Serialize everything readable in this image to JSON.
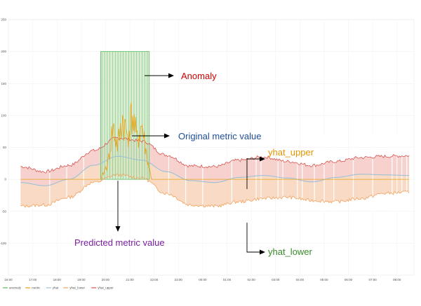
{
  "chart_data": {
    "type": "line",
    "title": "",
    "xlabel": "",
    "ylabel": "",
    "ylim": [
      -150,
      250
    ],
    "y_ticks": [
      "250",
      "200",
      "150",
      "100",
      "50",
      "0",
      "-50",
      "-100"
    ],
    "x_ticks": [
      "16:00",
      "17:00",
      "18:00",
      "19:00",
      "20:00",
      "21:00",
      "22:00",
      "23:00",
      "00:00",
      "01:00",
      "02:00",
      "03:00",
      "04:00",
      "05:00",
      "06:00",
      "07:00",
      "08:00"
    ],
    "grid": true,
    "legend_position": "bottom-left",
    "legend": [
      "anomaly",
      "metric",
      "yhat",
      "yhat_lower",
      "yhat_upper"
    ],
    "series": [
      {
        "name": "yhat_upper",
        "color": "#d9534f",
        "x": [
          16.5,
          17.5,
          18.5,
          19.5,
          20.5,
          21.5,
          22.5,
          23.5,
          24.5,
          25.5,
          26.5,
          27.5,
          28.5,
          29.5,
          30.5,
          31.5,
          32.5
        ],
        "values": [
          20,
          12,
          22,
          45,
          65,
          60,
          38,
          21,
          20,
          30,
          35,
          28,
          22,
          28,
          34,
          36,
          37
        ]
      },
      {
        "name": "yhat",
        "color": "#9cc1d6",
        "x": [
          16.5,
          17.5,
          18.5,
          19.5,
          20.5,
          21.5,
          22.5,
          23.5,
          24.5,
          25.5,
          26.5,
          27.5,
          28.5,
          29.5,
          30.5,
          31.5,
          32.5
        ],
        "values": [
          -5,
          -10,
          0,
          22,
          36,
          30,
          12,
          -2,
          -5,
          3,
          6,
          2,
          -4,
          3,
          8,
          7,
          6
        ]
      },
      {
        "name": "yhat_lower",
        "color": "#f0a35e",
        "x": [
          16.5,
          17.5,
          18.5,
          19.5,
          20.5,
          21.5,
          22.5,
          23.5,
          24.5,
          25.5,
          26.5,
          27.5,
          28.5,
          29.5,
          30.5,
          31.5,
          32.5
        ],
        "values": [
          -42,
          -40,
          -28,
          -5,
          7,
          2,
          -22,
          -40,
          -42,
          -35,
          -30,
          -28,
          -33,
          -35,
          -30,
          -22,
          -20
        ]
      },
      {
        "name": "metric",
        "color": "#e8a317",
        "x": [
          16.5,
          19.8,
          20.1,
          20.3,
          20.5,
          20.7,
          20.9,
          21.1,
          21.3,
          21.5,
          21.7,
          21.9,
          32.5
        ],
        "values": [
          0,
          0,
          30,
          95,
          60,
          110,
          80,
          120,
          70,
          100,
          40,
          0,
          0
        ]
      }
    ],
    "anomaly": {
      "name": "anomaly",
      "color": "#5cb85c",
      "x_range": [
        19.8,
        21.8
      ],
      "value": 200
    }
  },
  "annotations": {
    "anomaly": "Anomaly",
    "original": "Original metric value",
    "upper": "yhat_upper",
    "predicted": "Predicted metric value",
    "lower": "yhat_lower"
  },
  "colors": {
    "anomaly_text": "#cc0000",
    "original_text": "#1f4e99",
    "upper_text": "#e69500",
    "predicted_text": "#7a1fa2",
    "lower_text": "#3a8a2a"
  }
}
